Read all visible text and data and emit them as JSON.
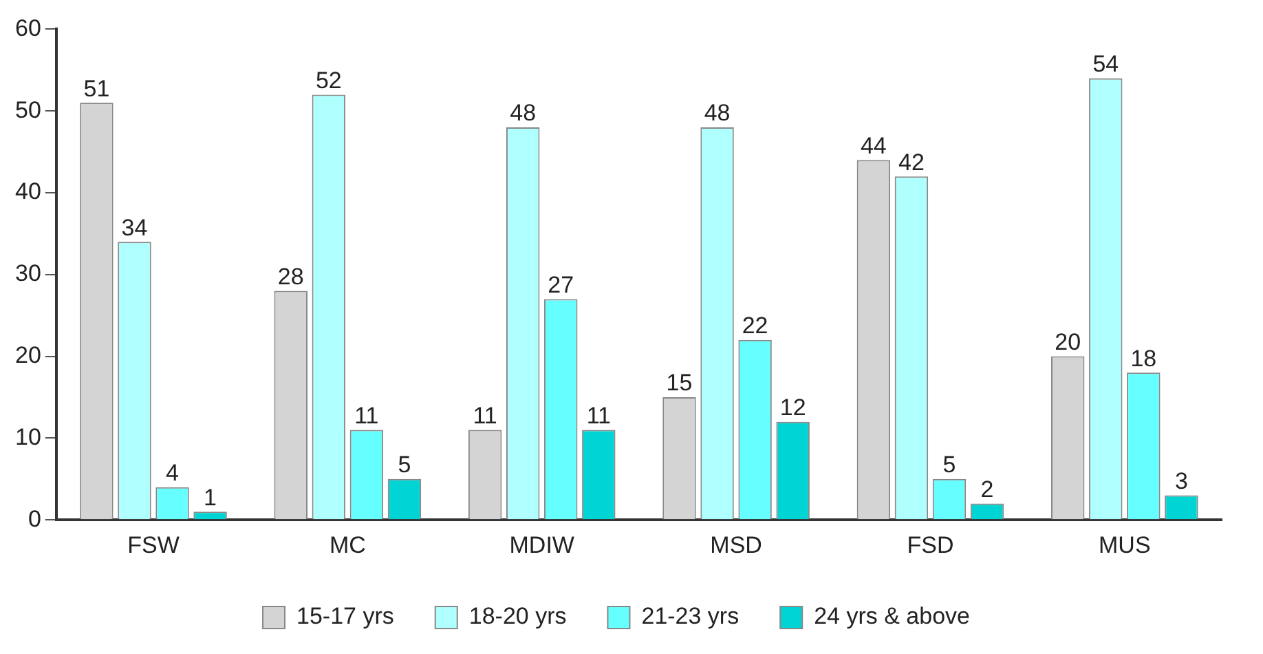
{
  "chart_data": {
    "type": "bar",
    "categories": [
      "FSW",
      "MC",
      "MDIW",
      "MSD",
      "FSD",
      "MUS"
    ],
    "series": [
      {
        "name": "15-17 yrs",
        "color": "#d4d4d4",
        "values": [
          51,
          28,
          11,
          15,
          44,
          20
        ]
      },
      {
        "name": "18-20 yrs",
        "color": "#b0ffff",
        "values": [
          34,
          52,
          48,
          48,
          42,
          54
        ]
      },
      {
        "name": "21-23 yrs",
        "color": "#66ffff",
        "values": [
          4,
          11,
          27,
          22,
          5,
          18
        ]
      },
      {
        "name": "24 yrs & above",
        "color": "#00d4d4",
        "values": [
          1,
          5,
          11,
          12,
          2,
          3
        ]
      }
    ],
    "ylim": [
      0,
      60
    ],
    "yticks": [
      0,
      10,
      20,
      30,
      40,
      50,
      60
    ],
    "grid": false,
    "legend": "bottom",
    "data_labels": true
  }
}
